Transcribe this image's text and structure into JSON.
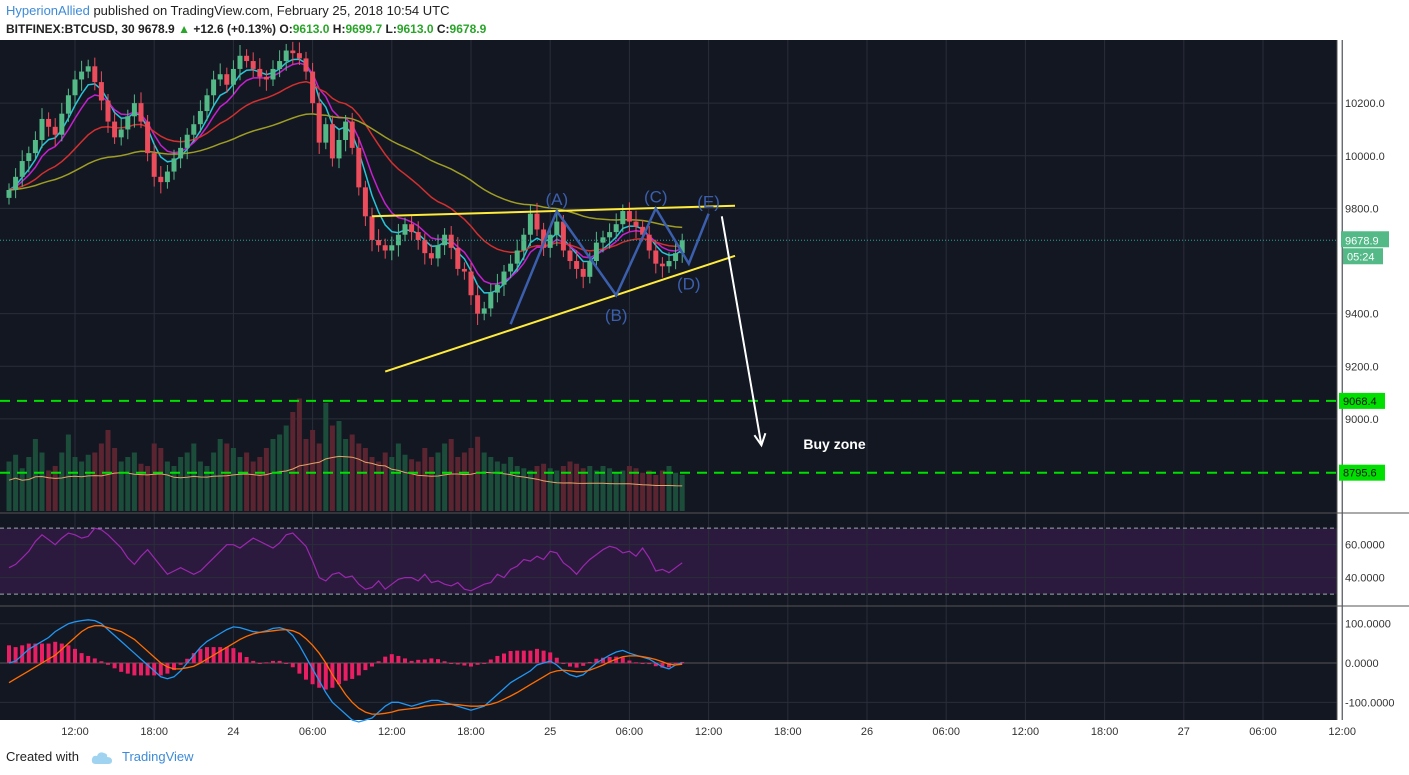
{
  "header": {
    "author": "HyperionAllied",
    "published_text": "published on TradingView.com, February 25, 2018 10:54 UTC",
    "symbol": "BITFINEX:BTCUSD, 30",
    "last": "9678.9",
    "arrow": "▲",
    "change": "+12.6 (+0.13%)",
    "o_label": "O:",
    "o_value": "9613.0",
    "h_label": "H:",
    "h_value": "9699.7",
    "l_label": "L:",
    "l_value": "9613.0",
    "c_label": "C:",
    "c_value": "9678.9"
  },
  "footer": {
    "created_with": "Created with",
    "brand": "TradingView",
    "logo_icon": "tradingview-cloud-icon"
  },
  "colors": {
    "background": "#131722",
    "grid": "#2a2e39",
    "up": "#53b987",
    "down": "#eb4d5c",
    "trendline": "#ffeb3b",
    "pattern": "#3b5fad",
    "support": "#00e000",
    "rsi": "#9c27b0",
    "macd": "#2196f3",
    "signal": "#ff6d00",
    "histogram": "#e91e63",
    "axis_text": "#c8c8c8"
  },
  "chart_data": [
    {
      "type": "candlestick",
      "symbol": "BITFINEX:BTCUSD",
      "interval": "30",
      "y_axis_ticks": [
        "10200.0",
        "10000.0",
        "9800.0",
        "9400.0",
        "9200.0",
        "9000.0"
      ],
      "ylim": [
        8650,
        10440
      ],
      "x_tick_labels": [
        "12:00",
        "18:00",
        "24",
        "06:00",
        "12:00",
        "18:00",
        "25",
        "06:00",
        "12:00",
        "18:00",
        "26",
        "06:00",
        "12:00",
        "18:00",
        "27",
        "06:00",
        "12:00"
      ],
      "x_tick_index": [
        10,
        22,
        34,
        46,
        58,
        70,
        82,
        94,
        106,
        118,
        130,
        142,
        154,
        166,
        178,
        190,
        202
      ],
      "bar_count": 103,
      "closes": [
        9870,
        9920,
        9980,
        10010,
        10060,
        10140,
        10110,
        10080,
        10160,
        10230,
        10290,
        10320,
        10340,
        10280,
        10210,
        10130,
        10070,
        10100,
        10150,
        10200,
        10130,
        10010,
        9920,
        9900,
        9940,
        9990,
        10030,
        10080,
        10120,
        10170,
        10230,
        10290,
        10310,
        10270,
        10330,
        10380,
        10360,
        10330,
        10300,
        10290,
        10330,
        10360,
        10400,
        10390,
        10370,
        10320,
        10200,
        10050,
        10120,
        9990,
        10060,
        10130,
        10030,
        9880,
        9770,
        9680,
        9660,
        9640,
        9660,
        9700,
        9740,
        9710,
        9680,
        9630,
        9610,
        9660,
        9700,
        9650,
        9570,
        9560,
        9470,
        9400,
        9420,
        9480,
        9510,
        9560,
        9590,
        9640,
        9700,
        9780,
        9720,
        9650,
        9700,
        9750,
        9640,
        9600,
        9570,
        9540,
        9600,
        9670,
        9690,
        9710,
        9740,
        9790,
        9750,
        9730,
        9700,
        9640,
        9590,
        9580,
        9600,
        9630,
        9678.9
      ],
      "current_price_label": "9678.9",
      "countdown_label": "05:24",
      "pattern_labels": [
        "(A)",
        "(B)",
        "(C)",
        "(D)",
        "(E)"
      ],
      "pattern_points": [
        [
          76,
          9360
        ],
        [
          83,
          9790
        ],
        [
          92,
          9470
        ],
        [
          98,
          9800
        ],
        [
          103,
          9590
        ],
        [
          106,
          9780
        ]
      ],
      "upper_trendline": [
        [
          55,
          9770
        ],
        [
          110,
          9810
        ]
      ],
      "lower_trendline": [
        [
          57,
          9180
        ],
        [
          110,
          9620
        ]
      ],
      "projection_arrow": [
        [
          108,
          9770
        ],
        [
          114,
          8900
        ]
      ],
      "support_levels": [
        {
          "value": 9068.4,
          "label": "9068.4"
        },
        {
          "value": 8795.6,
          "label": "8795.6"
        }
      ],
      "annotation": "Buy zone",
      "volume": [
        110,
        125,
        95,
        120,
        160,
        130,
        90,
        100,
        130,
        170,
        120,
        110,
        125,
        130,
        150,
        180,
        140,
        110,
        120,
        130,
        105,
        100,
        150,
        140,
        110,
        100,
        120,
        130,
        150,
        110,
        100,
        130,
        160,
        150,
        140,
        120,
        130,
        110,
        120,
        140,
        160,
        170,
        190,
        220,
        250,
        160,
        180,
        150,
        240,
        190,
        200,
        160,
        170,
        150,
        140,
        120,
        110,
        130,
        120,
        150,
        125,
        115,
        110,
        140,
        120,
        130,
        150,
        160,
        120,
        130,
        140,
        165,
        130,
        120,
        110,
        105,
        120,
        100,
        95,
        90,
        100,
        105,
        95,
        90,
        100,
        110,
        105,
        95,
        100,
        90,
        100,
        95,
        85,
        90,
        100,
        95,
        85,
        90,
        80,
        90,
        100,
        85,
        80
      ]
    },
    {
      "type": "line",
      "name": "RSI",
      "y_axis_ticks": [
        "60.0000",
        "40.0000"
      ],
      "ylim": [
        24,
        78
      ],
      "band": [
        30,
        70
      ],
      "values": [
        46,
        48,
        52,
        56,
        62,
        66,
        63,
        60,
        64,
        67,
        66,
        64,
        65,
        70,
        69,
        66,
        62,
        58,
        52,
        48,
        53,
        57,
        52,
        47,
        42,
        44,
        46,
        44,
        42,
        44,
        48,
        52,
        56,
        60,
        60,
        58,
        61,
        64,
        62,
        60,
        58,
        61,
        66,
        67,
        63,
        59,
        50,
        40,
        38,
        42,
        43,
        40,
        41,
        36,
        33,
        34,
        38,
        33,
        36,
        39,
        40,
        40,
        38,
        42,
        37,
        38,
        36,
        35,
        37,
        33,
        32,
        34,
        36,
        37,
        42,
        40,
        45,
        47,
        51,
        50,
        53,
        51,
        56,
        55,
        49,
        46,
        42,
        47,
        51,
        54,
        57,
        59,
        58,
        55,
        56,
        53,
        58,
        52,
        44,
        45,
        43,
        46,
        49
      ]
    },
    {
      "type": "line",
      "name": "MACD",
      "y_axis_ticks": [
        "100.0000",
        "0.0000",
        "-100.0000"
      ],
      "ylim": [
        -145,
        140
      ],
      "macd": [
        0,
        5,
        20,
        35,
        45,
        55,
        65,
        80,
        90,
        100,
        105,
        108,
        110,
        108,
        100,
        85,
        70,
        55,
        40,
        25,
        10,
        -5,
        -20,
        -35,
        -40,
        -35,
        -20,
        0,
        20,
        40,
        55,
        65,
        75,
        85,
        92,
        90,
        85,
        80,
        78,
        82,
        88,
        90,
        85,
        70,
        45,
        15,
        -15,
        -45,
        -75,
        -100,
        -115,
        -130,
        -145,
        -150,
        -145,
        -140,
        -125,
        -110,
        -100,
        -100,
        -105,
        -110,
        -105,
        -100,
        -95,
        -95,
        -100,
        -105,
        -110,
        -115,
        -120,
        -115,
        -110,
        -95,
        -80,
        -65,
        -50,
        -40,
        -30,
        -20,
        -5,
        0,
        5,
        -5,
        -20,
        -30,
        -35,
        -30,
        -15,
        0,
        10,
        20,
        28,
        32,
        25,
        20,
        15,
        10,
        0,
        -10,
        -15,
        -5,
        0
      ],
      "signal": [
        -50,
        -40,
        -30,
        -20,
        -10,
        0,
        10,
        20,
        35,
        50,
        65,
        80,
        90,
        95,
        95,
        90,
        85,
        80,
        70,
        60,
        45,
        30,
        15,
        0,
        -10,
        -15,
        -15,
        -12,
        -8,
        0,
        10,
        20,
        30,
        40,
        50,
        60,
        68,
        74,
        78,
        80,
        82,
        84,
        85,
        82,
        75,
        62,
        45,
        25,
        0,
        -30,
        -55,
        -80,
        -100,
        -115,
        -125,
        -130,
        -130,
        -128,
        -125,
        -120,
        -118,
        -116,
        -114,
        -110,
        -108,
        -106,
        -105,
        -105,
        -106,
        -108,
        -110,
        -110,
        -108,
        -105,
        -100,
        -92,
        -84,
        -75,
        -65,
        -55,
        -45,
        -35,
        -25,
        -20,
        -18,
        -20,
        -22,
        -22,
        -18,
        -12,
        -5,
        3,
        10,
        16,
        18,
        18,
        16,
        13,
        9,
        3,
        -3,
        -5,
        -3
      ]
    }
  ]
}
